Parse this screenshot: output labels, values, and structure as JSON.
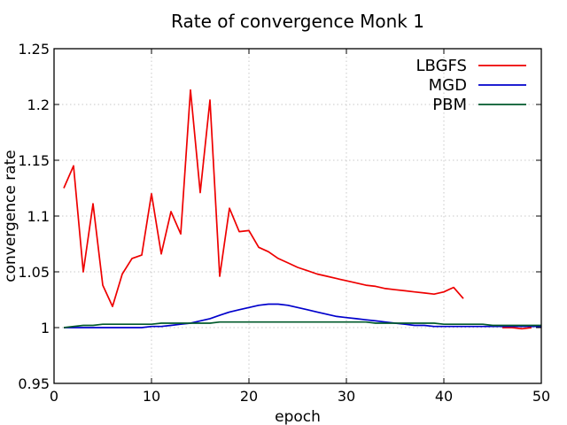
{
  "chart_data": {
    "type": "line",
    "title": "Rate of convergence Monk 1",
    "xlabel": "epoch",
    "ylabel": "convergence rate",
    "xlim": [
      0,
      50
    ],
    "ylim": [
      0.95,
      1.25
    ],
    "xticks": [
      0,
      10,
      20,
      30,
      40,
      50
    ],
    "xtick_labels": [
      "0",
      "10",
      "20",
      "30",
      "40",
      "50"
    ],
    "yticks": [
      0.95,
      1.0,
      1.05,
      1.1,
      1.15,
      1.2,
      1.25
    ],
    "ytick_labels": [
      "0.95",
      "1",
      "1.05",
      "1.1",
      "1.15",
      "1.2",
      "1.25"
    ],
    "grid": true,
    "legend_position": "top-right",
    "series": [
      {
        "name": "LBGFS",
        "color": "#ee0000",
        "segments": [
          {
            "x": [
              1,
              2,
              3,
              4,
              5,
              6,
              7,
              8,
              9,
              10,
              11,
              12,
              13,
              14,
              15,
              16,
              17,
              18,
              19,
              20,
              21,
              22,
              23,
              24,
              25,
              26,
              27,
              28,
              29,
              30,
              31,
              32,
              33,
              34,
              35,
              36,
              37,
              38,
              39,
              40,
              41,
              42
            ],
            "y": [
              1.125,
              1.145,
              1.05,
              1.111,
              1.038,
              1.019,
              1.048,
              1.062,
              1.065,
              1.12,
              1.066,
              1.104,
              1.084,
              1.213,
              1.121,
              1.204,
              1.046,
              1.107,
              1.086,
              1.087,
              1.072,
              1.068,
              1.062,
              1.058,
              1.054,
              1.051,
              1.048,
              1.046,
              1.044,
              1.042,
              1.04,
              1.038,
              1.037,
              1.035,
              1.034,
              1.033,
              1.032,
              1.031,
              1.03,
              1.032,
              1.036,
              1.026
            ]
          },
          {
            "x": [
              46,
              47,
              48,
              49
            ],
            "y": [
              1.0,
              1.0,
              0.999,
              1.0
            ]
          }
        ]
      },
      {
        "name": "MGD",
        "color": "#0000cc",
        "segments": [
          {
            "x": [
              1,
              2,
              3,
              4,
              5,
              6,
              7,
              8,
              9,
              10,
              11,
              12,
              13,
              14,
              15,
              16,
              17,
              18,
              19,
              20,
              21,
              22,
              23,
              24,
              25,
              26,
              27,
              28,
              29,
              30,
              31,
              32,
              33,
              34,
              35,
              36,
              37,
              38,
              39,
              40,
              41,
              42,
              43,
              44,
              45,
              46,
              47,
              48,
              49,
              50
            ],
            "y": [
              1.0,
              1.0,
              1.0,
              1.0,
              1.0,
              1.0,
              1.0,
              1.0,
              1.0,
              1.001,
              1.001,
              1.002,
              1.003,
              1.004,
              1.006,
              1.008,
              1.011,
              1.014,
              1.016,
              1.018,
              1.02,
              1.021,
              1.021,
              1.02,
              1.018,
              1.016,
              1.014,
              1.012,
              1.01,
              1.009,
              1.008,
              1.007,
              1.006,
              1.005,
              1.004,
              1.003,
              1.002,
              1.002,
              1.001,
              1.001,
              1.001,
              1.001,
              1.001,
              1.001,
              1.001,
              1.001,
              1.001,
              1.001,
              1.001,
              1.001
            ]
          }
        ]
      },
      {
        "name": "PBM",
        "color": "#005a2b",
        "segments": [
          {
            "x": [
              1,
              2,
              3,
              4,
              5,
              6,
              7,
              8,
              9,
              10,
              11,
              12,
              13,
              14,
              15,
              16,
              17,
              18,
              19,
              20,
              21,
              22,
              23,
              24,
              25,
              26,
              27,
              28,
              29,
              30,
              31,
              32,
              33,
              34,
              35,
              36,
              37,
              38,
              39,
              40,
              41,
              42,
              43,
              44,
              45,
              46,
              47,
              48,
              49,
              50
            ],
            "y": [
              1.0,
              1.001,
              1.002,
              1.002,
              1.003,
              1.003,
              1.003,
              1.003,
              1.003,
              1.003,
              1.004,
              1.004,
              1.004,
              1.004,
              1.004,
              1.004,
              1.005,
              1.005,
              1.005,
              1.005,
              1.005,
              1.005,
              1.005,
              1.005,
              1.005,
              1.005,
              1.005,
              1.005,
              1.005,
              1.005,
              1.005,
              1.005,
              1.004,
              1.004,
              1.004,
              1.004,
              1.004,
              1.004,
              1.004,
              1.003,
              1.003,
              1.003,
              1.003,
              1.003,
              1.002,
              1.002,
              1.002,
              1.002,
              1.002,
              1.002
            ]
          }
        ]
      }
    ]
  }
}
